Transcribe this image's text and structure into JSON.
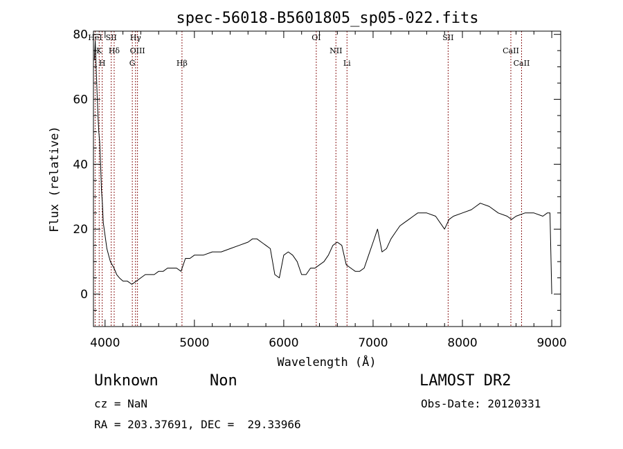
{
  "chart_data": {
    "type": "line",
    "title": "spec-56018-B5601805_sp05-022.fits",
    "xlabel": "Wavelength (Å)",
    "ylabel": "Flux (relative)",
    "xlim": [
      3870,
      9100
    ],
    "ylim": [
      -10,
      81
    ],
    "xticks": [
      4000,
      5000,
      6000,
      7000,
      8000,
      9000
    ],
    "yticks": [
      0,
      20,
      40,
      60,
      80
    ],
    "grid": false,
    "legend": "none",
    "line_color": "#000000",
    "marker_color": "#8b1a1a",
    "series": [
      {
        "x": [
          3880,
          3890,
          3900,
          3910,
          3920,
          3930,
          3940,
          3950,
          3960,
          3970,
          3980,
          3990,
          4000,
          4020,
          4040,
          4060,
          4080,
          4100,
          4130,
          4160,
          4200,
          4250,
          4300,
          4350,
          4400,
          4450,
          4500,
          4550,
          4600,
          4650,
          4700,
          4750,
          4800,
          4850,
          4900,
          4950,
          5000,
          5100,
          5200,
          5300,
          5400,
          5500,
          5600,
          5650,
          5700,
          5750,
          5800,
          5850,
          5900,
          5950,
          6000,
          6050,
          6100,
          6150,
          6200,
          6250,
          6300,
          6350,
          6400,
          6450,
          6500,
          6550,
          6600,
          6650,
          6700,
          6750,
          6800,
          6850,
          6900,
          6950,
          7000,
          7050,
          7100,
          7150,
          7200,
          7250,
          7300,
          7350,
          7400,
          7450,
          7500,
          7600,
          7700,
          7800,
          7850,
          7900,
          8000,
          8100,
          8150,
          8200,
          8300,
          8400,
          8500,
          8550,
          8600,
          8700,
          8800,
          8900,
          8950,
          8980,
          9000
        ],
        "values": [
          72,
          78,
          70,
          62,
          55,
          50,
          47,
          40,
          32,
          28,
          22,
          20,
          18,
          14,
          12,
          10,
          9,
          8,
          6,
          5,
          4,
          4,
          3,
          4,
          5,
          6,
          6,
          6,
          7,
          7,
          8,
          8,
          8,
          7,
          11,
          11,
          12,
          12,
          13,
          13,
          14,
          15,
          16,
          17,
          17,
          16,
          15,
          14,
          6,
          5,
          12,
          13,
          12,
          10,
          6,
          6,
          8,
          8,
          9,
          10,
          12,
          15,
          16,
          15,
          9,
          8,
          7,
          7,
          8,
          12,
          16,
          20,
          13,
          14,
          17,
          19,
          21,
          22,
          23,
          24,
          25,
          25,
          24,
          20,
          23,
          24,
          25,
          26,
          27,
          28,
          27,
          25,
          24,
          23,
          24,
          25,
          25,
          24,
          25,
          25,
          0
        ]
      }
    ],
    "spectral_lines": [
      {
        "label": "HeI",
        "x": 3889
      },
      {
        "label": "K",
        "x": 3934
      },
      {
        "label": "H",
        "x": 3968
      },
      {
        "label": "SII",
        "x": 4069
      },
      {
        "label": "Hδ",
        "x": 4102
      },
      {
        "label": "G",
        "x": 4305
      },
      {
        "label": "Hγ",
        "x": 4341
      },
      {
        "label": "OIII",
        "x": 4363
      },
      {
        "label": "Hβ",
        "x": 4861
      },
      {
        "label": "OI",
        "x": 6364
      },
      {
        "label": "NII",
        "x": 6584
      },
      {
        "label": "Li",
        "x": 6708
      },
      {
        "label": "SII",
        "x": 7840
      },
      {
        "label": "CaII",
        "x": 8542
      },
      {
        "label": "CaII",
        "x": 8662
      }
    ]
  },
  "info": {
    "object_class": "Unknown",
    "object_subclass": "Non",
    "survey": "LAMOST DR2",
    "redshift": "cz = NaN",
    "obs_date": "Obs-Date: 20120331",
    "coords": "RA = 203.37691, DEC =  29.33966"
  }
}
